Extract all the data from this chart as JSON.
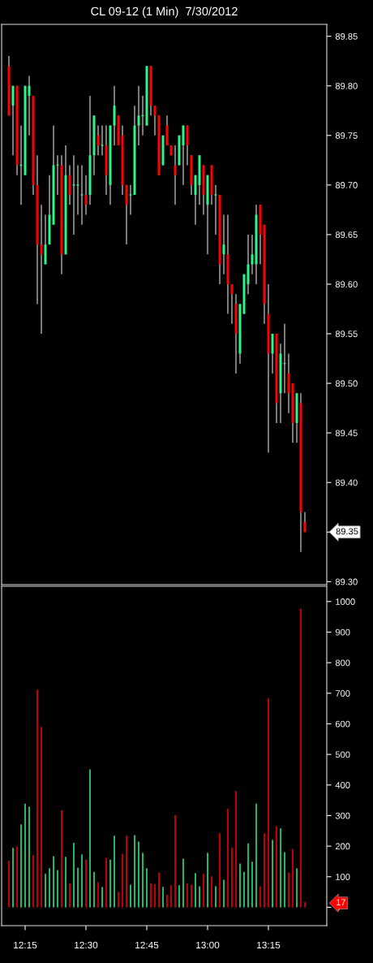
{
  "chart_data": [
    {
      "type": "candlestick",
      "title": "CL 09-12 (1 Min)  7/30/2012",
      "x": [
        12.1833,
        12.2,
        12.2167,
        12.2333,
        12.25,
        12.2667,
        12.2833,
        12.3,
        12.3167,
        12.3333,
        12.35,
        12.3667,
        12.3833,
        12.4,
        12.4167,
        12.4333,
        12.45,
        12.4667,
        12.4833,
        12.5,
        12.5167,
        12.5333,
        12.55,
        12.5667,
        12.5833,
        12.6,
        12.6167,
        12.6333,
        12.65,
        12.6667,
        12.6833,
        12.7,
        12.7167,
        12.7333,
        12.75,
        12.7667,
        12.7833,
        12.8,
        12.8167,
        12.8333,
        12.85,
        12.8667,
        12.8833,
        12.9,
        12.9167,
        12.9333,
        12.95,
        12.9667,
        12.9833,
        13.0,
        13.0167,
        13.0333,
        13.05,
        13.0667,
        13.0833,
        13.1,
        13.1167,
        13.1333,
        13.15,
        13.1667,
        13.1833,
        13.2,
        13.2167,
        13.2333,
        13.25,
        13.2667,
        13.2833,
        13.3,
        13.3167,
        13.3333,
        13.35,
        13.3667,
        13.3833,
        13.4
      ],
      "ohlc": [
        [
          89.82,
          89.83,
          89.77,
          89.77
        ],
        [
          89.78,
          89.8,
          89.73,
          89.8
        ],
        [
          89.8,
          89.8,
          89.71,
          89.72
        ],
        [
          89.72,
          89.76,
          89.68,
          89.72
        ],
        [
          89.71,
          89.8,
          89.71,
          89.8
        ],
        [
          89.79,
          89.81,
          89.75,
          89.8
        ],
        [
          89.79,
          89.79,
          89.69,
          89.7
        ],
        [
          89.7,
          89.73,
          89.58,
          89.64
        ],
        [
          89.64,
          89.68,
          89.55,
          89.63
        ],
        [
          89.62,
          89.67,
          89.62,
          89.64
        ],
        [
          89.64,
          89.71,
          89.64,
          89.67
        ],
        [
          89.66,
          89.76,
          89.66,
          89.72
        ],
        [
          89.72,
          89.73,
          89.69,
          89.72
        ],
        [
          89.72,
          89.73,
          89.61,
          89.63
        ],
        [
          89.63,
          89.74,
          89.63,
          89.71
        ],
        [
          89.71,
          89.72,
          89.68,
          89.69
        ],
        [
          89.7,
          89.73,
          89.65,
          89.7
        ],
        [
          89.7,
          89.72,
          89.67,
          89.7
        ],
        [
          89.69,
          89.72,
          89.66,
          89.69
        ],
        [
          89.69,
          89.71,
          89.67,
          89.68
        ],
        [
          89.69,
          89.79,
          89.68,
          89.73
        ],
        [
          89.73,
          89.77,
          89.71,
          89.77
        ],
        [
          89.75,
          89.76,
          89.73,
          89.74
        ],
        [
          89.74,
          89.76,
          89.73,
          89.74
        ],
        [
          89.74,
          89.76,
          89.69,
          89.71
        ],
        [
          89.7,
          89.76,
          89.68,
          89.76
        ],
        [
          89.76,
          89.8,
          89.74,
          89.78
        ],
        [
          89.77,
          89.77,
          89.74,
          89.74
        ],
        [
          89.75,
          89.76,
          89.69,
          89.7
        ],
        [
          89.7,
          89.7,
          89.64,
          89.68
        ],
        [
          89.69,
          89.7,
          89.67,
          89.69
        ],
        [
          89.69,
          89.78,
          89.69,
          89.76
        ],
        [
          89.76,
          89.8,
          89.74,
          89.77
        ],
        [
          89.77,
          89.79,
          89.75,
          89.77
        ],
        [
          89.76,
          89.82,
          89.76,
          89.82
        ],
        [
          89.82,
          89.82,
          89.77,
          89.78
        ],
        [
          89.78,
          89.78,
          89.75,
          89.77
        ],
        [
          89.77,
          89.77,
          89.71,
          89.71
        ],
        [
          89.72,
          89.75,
          89.72,
          89.75
        ],
        [
          89.76,
          89.77,
          89.74,
          89.74
        ],
        [
          89.74,
          89.74,
          89.73,
          89.73
        ],
        [
          89.72,
          89.74,
          89.68,
          89.71
        ],
        [
          89.72,
          89.75,
          89.72,
          89.75
        ],
        [
          89.74,
          89.76,
          89.7,
          89.76
        ],
        [
          89.76,
          89.76,
          89.72,
          89.74
        ],
        [
          89.73,
          89.73,
          89.69,
          89.7
        ],
        [
          89.69,
          89.71,
          89.66,
          89.71
        ],
        [
          89.7,
          89.73,
          89.68,
          89.73
        ],
        [
          89.72,
          89.72,
          89.67,
          89.69
        ],
        [
          89.68,
          89.71,
          89.63,
          89.71
        ],
        [
          89.72,
          89.72,
          89.68,
          89.69
        ],
        [
          89.69,
          89.7,
          89.65,
          89.69
        ],
        [
          89.69,
          89.69,
          89.6,
          89.62
        ],
        [
          89.63,
          89.67,
          89.61,
          89.64
        ],
        [
          89.63,
          89.67,
          89.57,
          89.6
        ],
        [
          89.6,
          89.6,
          89.56,
          89.59
        ],
        [
          89.58,
          89.59,
          89.51,
          89.55
        ],
        [
          89.53,
          89.58,
          89.52,
          89.58
        ],
        [
          89.57,
          89.61,
          89.57,
          89.61
        ],
        [
          89.6,
          89.65,
          89.59,
          89.62
        ],
        [
          89.62,
          89.65,
          89.61,
          89.63
        ],
        [
          89.62,
          89.68,
          89.6,
          89.67
        ],
        [
          89.68,
          89.68,
          89.62,
          89.65
        ],
        [
          89.66,
          89.66,
          89.56,
          89.58
        ],
        [
          89.57,
          89.6,
          89.43,
          89.53
        ],
        [
          89.53,
          89.55,
          89.51,
          89.55
        ],
        [
          89.55,
          89.55,
          89.46,
          89.48
        ],
        [
          89.49,
          89.54,
          89.46,
          89.53
        ],
        [
          89.52,
          89.56,
          89.49,
          89.52
        ],
        [
          89.51,
          89.53,
          89.47,
          89.49
        ],
        [
          89.5,
          89.5,
          89.44,
          89.46
        ],
        [
          89.46,
          89.49,
          89.44,
          89.49
        ],
        [
          89.48,
          89.49,
          89.33,
          89.37
        ],
        [
          89.36,
          89.37,
          89.35,
          89.35
        ]
      ],
      "colors": [
        "#ff0000",
        "#2ef58a",
        "#ff0000",
        "#2ef58a",
        "#2ef58a",
        "#2ef58a",
        "#ff0000",
        "#ff0000",
        "#ff0000",
        "#2ef58a",
        "#2ef58a",
        "#2ef58a",
        "#2ef58a",
        "#ff0000",
        "#2ef58a",
        "#ff0000",
        "#2ef58a",
        "#2ef58a",
        "#2ef58a",
        "#ff0000",
        "#2ef58a",
        "#2ef58a",
        "#ff0000",
        "#2ef58a",
        "#ff0000",
        "#2ef58a",
        "#2ef58a",
        "#ff0000",
        "#ff0000",
        "#ff0000",
        "#2ef58a",
        "#2ef58a",
        "#2ef58a",
        "#2ef58a",
        "#2ef58a",
        "#ff0000",
        "#ff0000",
        "#ff0000",
        "#2ef58a",
        "#ff0000",
        "#ff0000",
        "#ff0000",
        "#2ef58a",
        "#2ef58a",
        "#ff0000",
        "#ff0000",
        "#2ef58a",
        "#2ef58a",
        "#ff0000",
        "#2ef58a",
        "#ff0000",
        "#2ef58a",
        "#ff0000",
        "#2ef58a",
        "#ff0000",
        "#ff0000",
        "#ff0000",
        "#2ef58a",
        "#2ef58a",
        "#2ef58a",
        "#2ef58a",
        "#2ef58a",
        "#ff0000",
        "#ff0000",
        "#ff0000",
        "#2ef58a",
        "#ff0000",
        "#2ef58a",
        "#2ef58a",
        "#ff0000",
        "#ff0000",
        "#2ef58a",
        "#ff0000",
        "#ff0000"
      ],
      "xlim": [
        12.1533,
        13.49
      ],
      "ylim": [
        89.297,
        89.862
      ],
      "yticks": [
        {
          "value": 89.3,
          "label": "89.30"
        },
        89.35,
        {
          "value": 89.4,
          "label": "89.40"
        },
        89.45,
        {
          "value": 89.5,
          "label": "89.50"
        },
        89.55,
        {
          "value": 89.6,
          "label": "89.60"
        },
        89.65,
        {
          "value": 89.7,
          "label": "89.70"
        },
        89.75,
        {
          "value": 89.8,
          "label": "89.80"
        },
        89.85
      ],
      "tick_labels": "y",
      "grid": false,
      "annotations": [
        "89.35"
      ]
    },
    {
      "type": "bar",
      "x": [
        12.1833,
        12.2,
        12.2167,
        12.2333,
        12.25,
        12.2667,
        12.2833,
        12.3,
        12.3167,
        12.3333,
        12.35,
        12.3667,
        12.3833,
        12.4,
        12.4167,
        12.4333,
        12.45,
        12.4667,
        12.4833,
        12.5,
        12.5167,
        12.5333,
        12.55,
        12.5667,
        12.5833,
        12.6,
        12.6167,
        12.6333,
        12.65,
        12.6667,
        12.6833,
        12.7,
        12.7167,
        12.7333,
        12.75,
        12.7667,
        12.7833,
        12.8,
        12.8167,
        12.8333,
        12.85,
        12.8667,
        12.8833,
        12.9,
        12.9167,
        12.9333,
        12.95,
        12.9667,
        12.9833,
        13.0,
        13.0167,
        13.0333,
        13.05,
        13.0667,
        13.0833,
        13.1,
        13.1167,
        13.1333,
        13.15,
        13.1667,
        13.1833,
        13.2,
        13.2167,
        13.2333,
        13.25,
        13.2667,
        13.2833,
        13.3,
        13.3167,
        13.3333,
        13.35,
        13.3667,
        13.3833,
        13.4
      ],
      "values": [
        153,
        194,
        199,
        271,
        339,
        329,
        171,
        712,
        590,
        109,
        128,
        167,
        122,
        317,
        165,
        79,
        211,
        129,
        173,
        156,
        451,
        116,
        82,
        66,
        162,
        156,
        234,
        50,
        175,
        234,
        74,
        236,
        215,
        178,
        128,
        79,
        76,
        114,
        67,
        41,
        72,
        302,
        72,
        159,
        79,
        74,
        112,
        69,
        109,
        178,
        101,
        69,
        242,
        90,
        322,
        194,
        380,
        143,
        116,
        209,
        149,
        339,
        69,
        242,
        685,
        221,
        265,
        258,
        180,
        113,
        191,
        127,
        976,
        17
      ],
      "colors": [
        "#ff0000",
        "#2ef58a",
        "#ff0000",
        "#2ef58a",
        "#2ef58a",
        "#2ef58a",
        "#ff0000",
        "#ff0000",
        "#ff0000",
        "#2ef58a",
        "#2ef58a",
        "#2ef58a",
        "#2ef58a",
        "#ff0000",
        "#2ef58a",
        "#ff0000",
        "#2ef58a",
        "#2ef58a",
        "#2ef58a",
        "#ff0000",
        "#2ef58a",
        "#2ef58a",
        "#ff0000",
        "#2ef58a",
        "#ff0000",
        "#2ef58a",
        "#2ef58a",
        "#ff0000",
        "#ff0000",
        "#ff0000",
        "#2ef58a",
        "#2ef58a",
        "#2ef58a",
        "#2ef58a",
        "#2ef58a",
        "#ff0000",
        "#ff0000",
        "#ff0000",
        "#2ef58a",
        "#ff0000",
        "#ff0000",
        "#ff0000",
        "#2ef58a",
        "#2ef58a",
        "#ff0000",
        "#ff0000",
        "#2ef58a",
        "#2ef58a",
        "#ff0000",
        "#2ef58a",
        "#ff0000",
        "#2ef58a",
        "#ff0000",
        "#2ef58a",
        "#ff0000",
        "#ff0000",
        "#ff0000",
        "#2ef58a",
        "#2ef58a",
        "#2ef58a",
        "#2ef58a",
        "#2ef58a",
        "#ff0000",
        "#ff0000",
        "#ff0000",
        "#2ef58a",
        "#ff0000",
        "#2ef58a",
        "#2ef58a",
        "#ff0000",
        "#ff0000",
        "#2ef58a",
        "#ff0000",
        "#ff0000"
      ],
      "xlim": [
        12.1533,
        13.49
      ],
      "xticks": [
        {
          "value": 12.25,
          "label": "12:15"
        },
        {
          "value": 12.5,
          "label": "12:30"
        },
        {
          "value": 12.75,
          "label": "12:45"
        },
        {
          "value": 13.0,
          "label": "13:00"
        },
        {
          "value": 13.25,
          "label": "13:15"
        }
      ],
      "ylim": [
        -60,
        1050
      ],
      "yticks": [
        0,
        {
          "value": 17,
          "label": "17"
        },
        100,
        200,
        300,
        400,
        500,
        600,
        700,
        800,
        900,
        1000
      ],
      "grid": false
    }
  ]
}
